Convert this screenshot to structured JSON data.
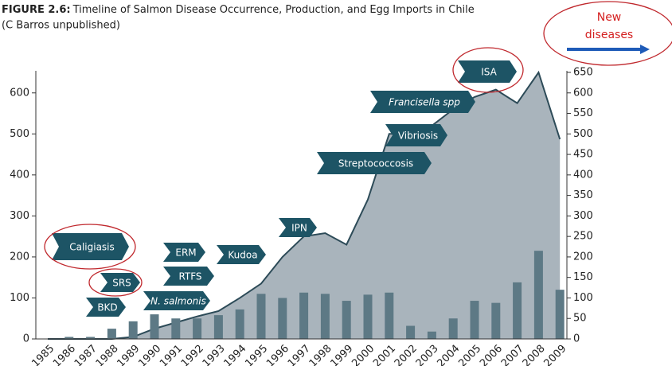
{
  "chart_data": {
    "type": "area_bar",
    "title_label": "FIGURE 2.6:",
    "title": "Timeline of Salmon Disease Occurrence, Production, and Egg Imports in Chile",
    "subtitle": "(C Barros unpublished)",
    "categories": [
      "1985",
      "1986",
      "1987",
      "1988",
      "1989",
      "1990",
      "1991",
      "1992",
      "1993",
      "1994",
      "1995",
      "1996",
      "1997",
      "1998",
      "1999",
      "2000",
      "2001",
      "2002",
      "2003",
      "2004",
      "2005",
      "2006",
      "2007",
      "2008",
      "2009"
    ],
    "series": [
      {
        "color": "#a9b4bc",
        "values": [
          0,
          0,
          0,
          0,
          5,
          25,
          40,
          55,
          68,
          100,
          135,
          200,
          250,
          258,
          230,
          340,
          500,
          500,
          520,
          560,
          590,
          608,
          575,
          650,
          487
        ]
      },
      {
        "color": "#5d7985",
        "axis": "y2",
        "values": [
          0,
          5,
          5,
          25,
          43,
          60,
          50,
          50,
          58,
          72,
          110,
          100,
          113,
          110,
          93,
          108,
          113,
          32,
          18,
          50,
          93,
          88,
          138,
          215,
          120
        ]
      }
    ],
    "ylim": [
      0,
      650
    ],
    "yticks": [
      0,
      100,
      200,
      300,
      400,
      500,
      600
    ],
    "y2lim": [
      0,
      650
    ],
    "y2ticks": [
      0,
      50,
      100,
      150,
      200,
      250,
      300,
      350,
      400,
      450,
      500,
      550,
      600,
      650
    ],
    "annotations": [
      {
        "text": "Caligiasis"
      },
      {
        "text": "SRS"
      },
      {
        "text": "BKD"
      },
      {
        "text": "N. salmonis"
      },
      {
        "text": "ERM"
      },
      {
        "text": "RTFS"
      },
      {
        "text": "Kudoa"
      },
      {
        "text": "IPN"
      },
      {
        "text": "Streptococcosis"
      },
      {
        "text": "Vibriosis"
      },
      {
        "text": "Francisella spp"
      },
      {
        "text": "ISA"
      }
    ],
    "callout": [
      "New",
      "diseases"
    ]
  }
}
